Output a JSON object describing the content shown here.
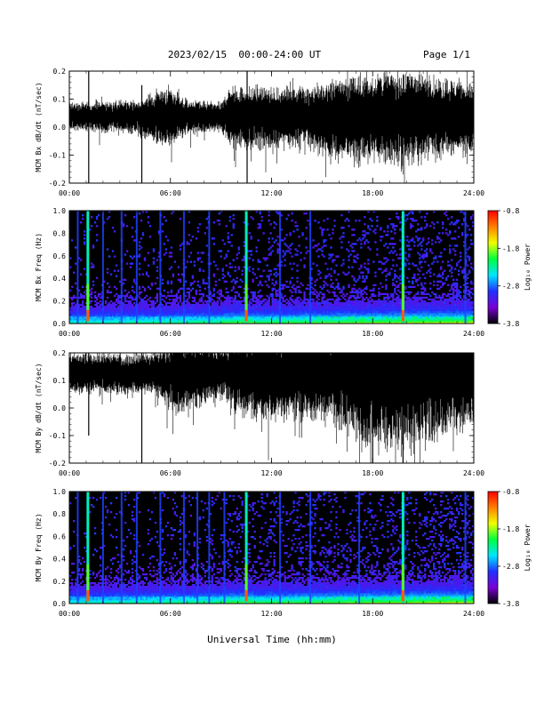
{
  "header": {
    "title": "2023/02/15  00:00-24:00 UT",
    "page": "Page 1/1"
  },
  "x_axis_title": "Universal Time (hh:mm)",
  "colorbar": {
    "label": "Log₁₀ Power",
    "ticks": [
      "-0.8",
      "-1.8",
      "-2.8",
      "-3.8"
    ],
    "range": [
      -3.8,
      -0.8
    ],
    "colors": [
      "#000000",
      "#7b00d4",
      "#2030ff",
      "#00e5ff",
      "#00ff40",
      "#f0ff00",
      "#ff8000",
      "#ff0000"
    ]
  },
  "chart_data": [
    {
      "type": "line",
      "ylabel": "MCM Bx dB/dt (nT/sec)",
      "xlim": [
        0,
        24
      ],
      "ylim": [
        -0.2,
        0.2
      ],
      "x_ticks": [
        "00:00",
        "06:00",
        "12:00",
        "18:00",
        "24:00"
      ],
      "y_ticks": [
        "-0.2",
        "-0.1",
        "0.0",
        "0.1",
        "0.2"
      ],
      "baseline": 0.04,
      "noise_envelope": [
        {
          "t": 0.0,
          "amp": 0.04
        },
        {
          "t": 4.0,
          "amp": 0.05
        },
        {
          "t": 5.8,
          "amp": 0.09
        },
        {
          "t": 7.0,
          "amp": 0.05
        },
        {
          "t": 9.0,
          "amp": 0.04
        },
        {
          "t": 9.5,
          "amp": 0.09
        },
        {
          "t": 14.0,
          "amp": 0.09
        },
        {
          "t": 16.0,
          "amp": 0.12
        },
        {
          "t": 20.0,
          "amp": 0.14
        },
        {
          "t": 24.0,
          "amp": 0.1
        }
      ],
      "spikes": [
        {
          "t": 1.15,
          "min": -0.2,
          "max": 0.2
        },
        {
          "t": 4.3,
          "min": -0.2,
          "max": 0.15
        },
        {
          "t": 10.55,
          "min": -0.2,
          "max": 0.2
        }
      ]
    },
    {
      "type": "heatmap",
      "ylabel": "MCM Bx Freq (Hz)",
      "xlim": [
        0,
        24
      ],
      "ylim": [
        0,
        1
      ],
      "x_ticks": [
        "00:00",
        "06:00",
        "12:00",
        "18:00",
        "24:00"
      ],
      "y_ticks": [
        "0.0",
        "0.2",
        "0.4",
        "0.6",
        "0.8",
        "1.0"
      ],
      "zrange": [
        -3.8,
        -0.8
      ],
      "bright_lines": [
        1.1,
        10.5,
        19.8
      ],
      "medium_lines": [
        0.5,
        2.0,
        3.1,
        4.0,
        5.4,
        6.8,
        8.3,
        12.5,
        14.3,
        23.5
      ]
    },
    {
      "type": "line",
      "ylabel": "MCM By dB/dt (nT/sec)",
      "xlim": [
        0,
        24
      ],
      "ylim": [
        -0.2,
        0.2
      ],
      "x_ticks": [
        "00:00",
        "06:00",
        "12:00",
        "18:00",
        "24:00"
      ],
      "y_ticks": [
        "-0.2",
        "-0.1",
        "0.0",
        "0.1",
        "0.2"
      ],
      "baseline": 0.13,
      "noise_envelope": [
        {
          "t": 0.0,
          "amp": 0.06
        },
        {
          "t": 5.0,
          "amp": 0.06
        },
        {
          "t": 6.5,
          "amp": 0.12
        },
        {
          "t": 9.0,
          "amp": 0.08
        },
        {
          "t": 11.0,
          "amp": 0.14
        },
        {
          "t": 16.0,
          "amp": 0.14
        },
        {
          "t": 17.5,
          "amp": 0.22
        },
        {
          "t": 20.0,
          "amp": 0.22
        },
        {
          "t": 24.0,
          "amp": 0.16
        }
      ],
      "spikes": [
        {
          "t": 1.15,
          "min": -0.1,
          "max": 0.2
        },
        {
          "t": 4.3,
          "min": -0.2,
          "max": 0.2
        },
        {
          "t": 18.0,
          "min": -0.2,
          "max": 0.2
        },
        {
          "t": 19.8,
          "min": -0.2,
          "max": 0.2
        }
      ]
    },
    {
      "type": "heatmap",
      "ylabel": "MCM By Freq (Hz)",
      "xlim": [
        0,
        24
      ],
      "ylim": [
        0,
        1
      ],
      "x_ticks": [
        "00:00",
        "06:00",
        "12:00",
        "18:00",
        "24:00"
      ],
      "y_ticks": [
        "0.0",
        "0.2",
        "0.4",
        "0.6",
        "0.8",
        "1.0"
      ],
      "zrange": [
        -3.8,
        -0.8
      ],
      "bright_lines": [
        1.1,
        10.5,
        19.8
      ],
      "medium_lines": [
        0.5,
        2.0,
        3.1,
        4.0,
        5.4,
        6.8,
        7.6,
        8.3,
        9.2,
        12.5,
        14.3,
        17.2,
        23.5
      ]
    }
  ]
}
